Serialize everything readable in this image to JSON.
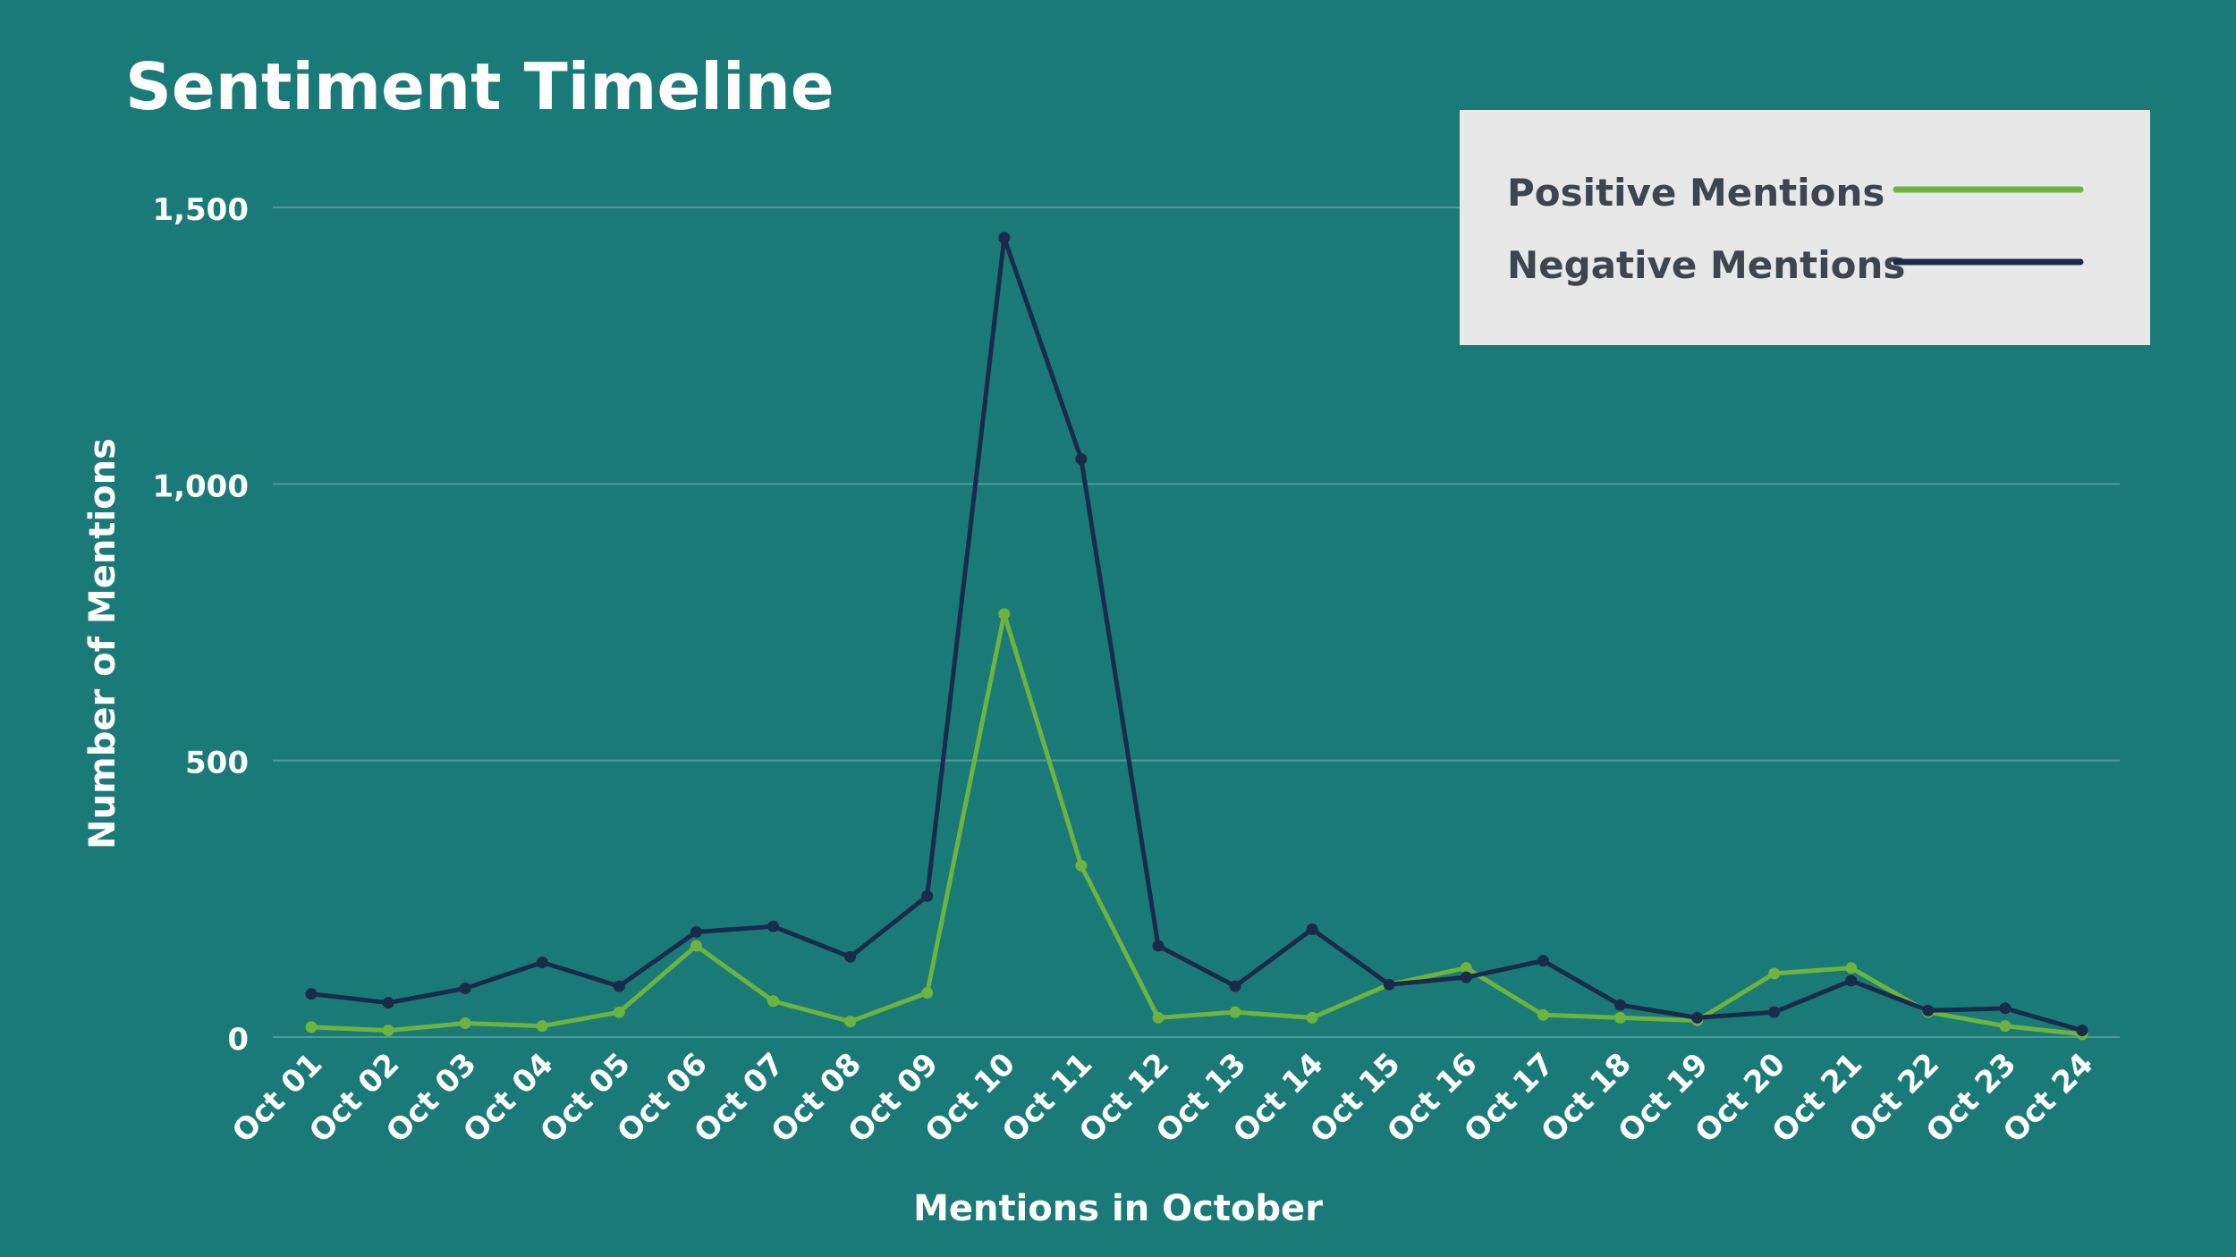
{
  "chart_data": {
    "type": "line",
    "title": "Sentiment Timeline",
    "xlabel": "Mentions in October",
    "ylabel": "Number of Mentions",
    "ylim": [
      0,
      1500
    ],
    "yticks": [
      "0",
      "500",
      "1,000",
      "1,500"
    ],
    "ytick_values": [
      0,
      500,
      1000,
      1500
    ],
    "grid": true,
    "legend_position": "top-right",
    "categories": [
      "Oct 01",
      "Oct 02",
      "Oct 03",
      "Oct 04",
      "Oct 05",
      "Oct 06",
      "Oct 07",
      "Oct 08",
      "Oct 09",
      "Oct 10",
      "Oct 11",
      "Oct 12",
      "Oct 13",
      "Oct 14",
      "Oct 15",
      "Oct 16",
      "Oct 17",
      "Oct 18",
      "Oct 19",
      "Oct 20",
      "Oct 21",
      "Oct 22",
      "Oct 23",
      "Oct 24"
    ],
    "series": [
      {
        "name": "Positive Mentions",
        "color": "#6db33f",
        "values": [
          18,
          12,
          25,
          20,
          45,
          165,
          65,
          28,
          80,
          765,
          310,
          35,
          45,
          35,
          95,
          125,
          40,
          35,
          30,
          115,
          125,
          45,
          20,
          5
        ]
      },
      {
        "name": "Negative Mentions",
        "color": "#1a2a4a",
        "values": [
          78,
          62,
          88,
          135,
          92,
          190,
          200,
          145,
          255,
          1445,
          1045,
          165,
          92,
          195,
          95,
          108,
          138,
          58,
          35,
          45,
          102,
          48,
          52,
          12
        ]
      }
    ]
  },
  "colors": {
    "background": "#1a7a78",
    "legend_background": "#e8e8e8",
    "legend_text": "#3d4650",
    "gridline": "#4f9a98",
    "text": "#ffffff"
  }
}
